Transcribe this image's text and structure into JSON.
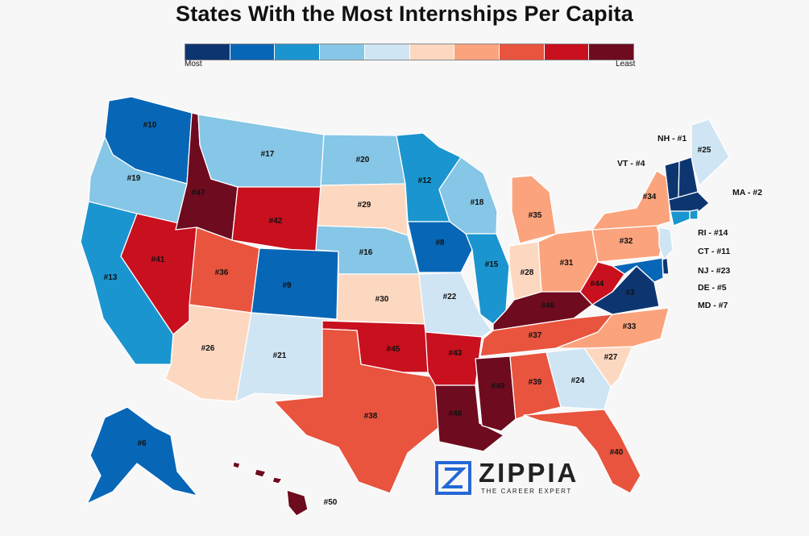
{
  "title": "States With the Most Internships Per Capita",
  "legend": {
    "min_label": "Most",
    "max_label": "Least",
    "colors": [
      "#0d3671",
      "#0866b7",
      "#1a95cf",
      "#86c6e6",
      "#cfe5f4",
      "#fdd8c0",
      "#fba37c",
      "#e8543e",
      "#c8101e",
      "#6e0b1f"
    ]
  },
  "states": [
    {
      "id": "WA",
      "rank": 10
    },
    {
      "id": "OR",
      "rank": 19
    },
    {
      "id": "CA",
      "rank": 13
    },
    {
      "id": "NV",
      "rank": 41
    },
    {
      "id": "ID",
      "rank": 47
    },
    {
      "id": "MT",
      "rank": 17
    },
    {
      "id": "WY",
      "rank": 42
    },
    {
      "id": "UT",
      "rank": 36
    },
    {
      "id": "AZ",
      "rank": 26
    },
    {
      "id": "CO",
      "rank": 9
    },
    {
      "id": "NM",
      "rank": 21
    },
    {
      "id": "ND",
      "rank": 20
    },
    {
      "id": "SD",
      "rank": 29
    },
    {
      "id": "NE",
      "rank": 16
    },
    {
      "id": "KS",
      "rank": 30
    },
    {
      "id": "OK",
      "rank": 45
    },
    {
      "id": "TX",
      "rank": 38
    },
    {
      "id": "MN",
      "rank": 12
    },
    {
      "id": "IA",
      "rank": 8
    },
    {
      "id": "MO",
      "rank": 22
    },
    {
      "id": "AR",
      "rank": 43
    },
    {
      "id": "LA",
      "rank": 48
    },
    {
      "id": "WI",
      "rank": 18
    },
    {
      "id": "IL",
      "rank": 15
    },
    {
      "id": "MI",
      "rank": 35
    },
    {
      "id": "IN",
      "rank": 28
    },
    {
      "id": "OH",
      "rank": 31
    },
    {
      "id": "KY",
      "rank": 46
    },
    {
      "id": "TN",
      "rank": 37
    },
    {
      "id": "MS",
      "rank": 49
    },
    {
      "id": "AL",
      "rank": 39
    },
    {
      "id": "GA",
      "rank": 24
    },
    {
      "id": "FL",
      "rank": 40
    },
    {
      "id": "SC",
      "rank": 27
    },
    {
      "id": "NC",
      "rank": 33
    },
    {
      "id": "VA",
      "rank": 3
    },
    {
      "id": "WV",
      "rank": 44
    },
    {
      "id": "PA",
      "rank": 32
    },
    {
      "id": "NY",
      "rank": 34
    },
    {
      "id": "ME",
      "rank": 25
    },
    {
      "id": "VT",
      "rank": 4
    },
    {
      "id": "NH",
      "rank": 1
    },
    {
      "id": "MA",
      "rank": 2
    },
    {
      "id": "RI",
      "rank": 14
    },
    {
      "id": "CT",
      "rank": 11
    },
    {
      "id": "NJ",
      "rank": 23
    },
    {
      "id": "DE",
      "rank": 5
    },
    {
      "id": "MD",
      "rank": 7
    },
    {
      "id": "AK",
      "rank": 6
    },
    {
      "id": "HI",
      "rank": 50
    }
  ],
  "map_labels": [
    "#10",
    "#19",
    "#13",
    "#41",
    "#47",
    "#17",
    "#42",
    "#36",
    "#26",
    "#9",
    "#21",
    "#20",
    "#29",
    "#16",
    "#30",
    "#45",
    "#38",
    "#12",
    "#8",
    "#22",
    "#43",
    "#48",
    "#18",
    "#15",
    "#35",
    "#28",
    "#31",
    "#46",
    "#37",
    "#49",
    "#39",
    "#24",
    "#40",
    "#27",
    "#33",
    "#3",
    "#44",
    "#32",
    "#34",
    "#25",
    "#6",
    "#50"
  ],
  "callouts": [
    "NH - #1",
    "VT - #4",
    "MA - #2",
    "RI - #14",
    "CT - #11",
    "NJ - #23",
    "DE - #5",
    "MD - #7"
  ],
  "logo": {
    "word": "ZIPPIA",
    "tagline": "THE CAREER EXPERT",
    "color": "#2667d8"
  }
}
